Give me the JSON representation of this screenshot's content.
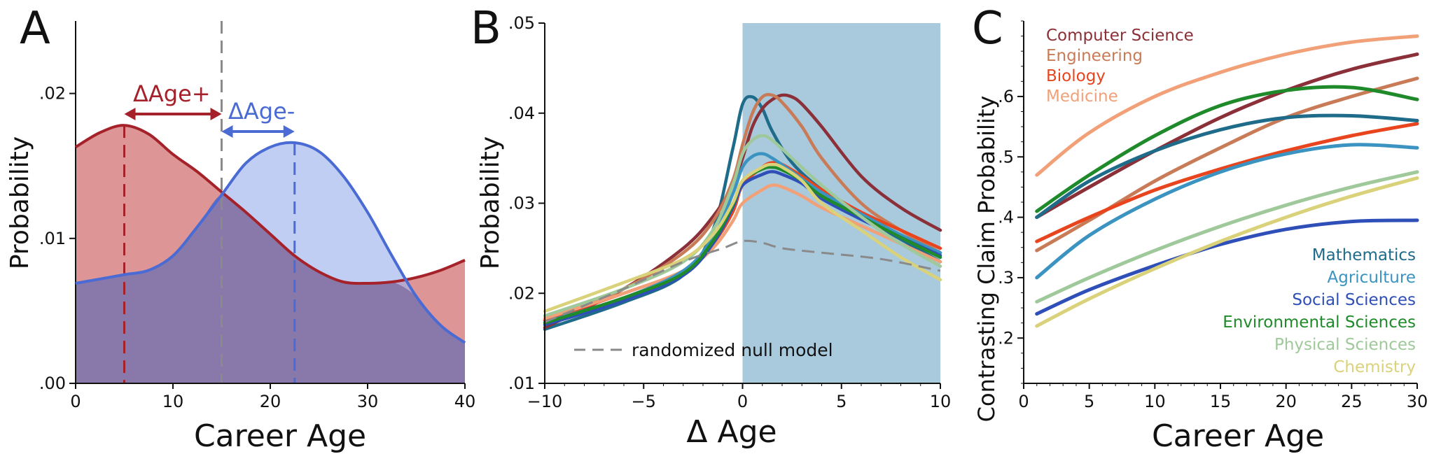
{
  "chart_data": [
    {
      "panel": "A",
      "type": "area",
      "xlabel": "Career Age",
      "ylabel": "Probability",
      "xlim": [
        0,
        40
      ],
      "ylim": [
        0,
        0.025
      ],
      "xticks": [
        0,
        10,
        20,
        30,
        40
      ],
      "xtick_labels": [
        "0",
        "10",
        "20",
        "30",
        "40"
      ],
      "yticks": [
        0,
        0.01,
        0.02
      ],
      "ytick_labels": [
        ".00",
        ".01",
        ".02"
      ],
      "reference_line_x": 15,
      "series": [
        {
          "name": "ΔAge+",
          "color": "#a5222b",
          "fill": "#d98a8a",
          "peak_x": 5,
          "x": [
            0,
            2.5,
            5,
            7.5,
            10,
            12.5,
            15,
            17.5,
            20,
            22.5,
            25,
            27.5,
            30,
            32.5,
            35,
            37.5,
            40
          ],
          "y": [
            0.0163,
            0.0173,
            0.0178,
            0.0172,
            0.0158,
            0.0146,
            0.0132,
            0.0118,
            0.0103,
            0.0088,
            0.0077,
            0.007,
            0.0069,
            0.007,
            0.0073,
            0.0078,
            0.0085
          ]
        },
        {
          "name": "ΔAge-",
          "color": "#4a6bd4",
          "fill": "#9fb4ee",
          "peak_x": 22.5,
          "x": [
            0,
            2.5,
            5,
            7.5,
            10,
            12.5,
            15,
            17.5,
            20,
            22.5,
            25,
            27.5,
            30,
            32.5,
            35,
            37.5,
            40
          ],
          "y": [
            0.0069,
            0.0072,
            0.0075,
            0.0078,
            0.0088,
            0.0108,
            0.013,
            0.0152,
            0.0163,
            0.0166,
            0.016,
            0.0143,
            0.0118,
            0.0088,
            0.006,
            0.004,
            0.0028
          ]
        }
      ]
    },
    {
      "panel": "B",
      "type": "line",
      "xlabel": "Δ Age",
      "ylabel": "Probability",
      "xlim": [
        -10,
        10
      ],
      "ylim": [
        0.01,
        0.05
      ],
      "xticks": [
        -10,
        -5,
        0,
        5,
        10
      ],
      "xtick_labels": [
        "−10",
        "−5",
        "0",
        "5",
        "10"
      ],
      "yticks": [
        0.01,
        0.02,
        0.03,
        0.04,
        0.05
      ],
      "ytick_labels": [
        ".01",
        ".02",
        ".03",
        ".04",
        ".05"
      ],
      "shaded_region_x": [
        0,
        10
      ],
      "shaded_color": "#a9c9dd",
      "null_model": {
        "label": "randomized null model",
        "color": "#8a8a8a",
        "x": [
          -10,
          -6,
          -3,
          -1,
          0,
          1,
          2,
          4,
          7,
          10
        ],
        "y": [
          0.0168,
          0.0205,
          0.0235,
          0.025,
          0.0258,
          0.0256,
          0.025,
          0.0245,
          0.0238,
          0.0225
        ]
      },
      "series": [
        {
          "name": "Mathematics",
          "color": "#1f6b8a",
          "x": [
            -10,
            -6,
            -3,
            -1.5,
            -0.5,
            0,
            0.5,
            1,
            1.5,
            2.5,
            4,
            6,
            8,
            10
          ],
          "y": [
            0.016,
            0.019,
            0.022,
            0.027,
            0.036,
            0.041,
            0.0418,
            0.0405,
            0.038,
            0.0345,
            0.0315,
            0.0285,
            0.026,
            0.0235
          ]
        },
        {
          "name": "Computer Science",
          "color": "#8b3038",
          "x": [
            -10,
            -6,
            -3,
            -1.5,
            -0.5,
            0,
            0.5,
            1,
            1.5,
            2,
            2.5,
            3,
            4,
            6,
            8,
            10
          ],
          "y": [
            0.0162,
            0.0205,
            0.025,
            0.0285,
            0.032,
            0.035,
            0.0385,
            0.0405,
            0.0415,
            0.042,
            0.0418,
            0.041,
            0.0385,
            0.033,
            0.0295,
            0.027
          ]
        },
        {
          "name": "Engineering",
          "color": "#c87b56",
          "x": [
            -10,
            -6,
            -3,
            -1.5,
            -0.5,
            0,
            0.5,
            1,
            1.5,
            2,
            3,
            4,
            6,
            8,
            10
          ],
          "y": [
            0.017,
            0.0205,
            0.0245,
            0.028,
            0.0325,
            0.0365,
            0.04,
            0.0418,
            0.042,
            0.0412,
            0.0385,
            0.035,
            0.03,
            0.027,
            0.0245
          ]
        },
        {
          "name": "Biology",
          "color": "#e8451f",
          "x": [
            -10,
            -6,
            -3,
            -1.5,
            -0.5,
            0,
            1,
            1.5,
            2,
            3,
            4,
            6,
            8,
            10
          ],
          "y": [
            0.017,
            0.02,
            0.0225,
            0.0255,
            0.029,
            0.032,
            0.034,
            0.0345,
            0.0343,
            0.033,
            0.0315,
            0.029,
            0.027,
            0.025
          ]
        },
        {
          "name": "Medicine",
          "color": "#f2a078",
          "x": [
            -10,
            -6,
            -3,
            -1.5,
            -0.5,
            0,
            1,
            1.5,
            2,
            3,
            4,
            6,
            8,
            10
          ],
          "y": [
            0.0172,
            0.02,
            0.0225,
            0.025,
            0.028,
            0.03,
            0.0315,
            0.032,
            0.0318,
            0.0308,
            0.0295,
            0.0275,
            0.0255,
            0.0235
          ]
        },
        {
          "name": "Agriculture",
          "color": "#3a93c0",
          "x": [
            -10,
            -6,
            -3,
            -1.5,
            -0.5,
            0,
            0.5,
            1,
            1.5,
            2.5,
            4,
            6,
            8,
            10
          ],
          "y": [
            0.0168,
            0.0195,
            0.0225,
            0.0262,
            0.031,
            0.034,
            0.0352,
            0.0355,
            0.035,
            0.0335,
            0.0312,
            0.0288,
            0.0265,
            0.0245
          ]
        },
        {
          "name": "Social Sciences",
          "color": "#2f4fb8",
          "x": [
            -10,
            -6,
            -3,
            -1.5,
            -0.5,
            0,
            1,
            1.5,
            2,
            3,
            4,
            6,
            8,
            10
          ],
          "y": [
            0.0165,
            0.0192,
            0.022,
            0.0255,
            0.0295,
            0.032,
            0.0332,
            0.0335,
            0.0332,
            0.0322,
            0.0305,
            0.0282,
            0.0262,
            0.0242
          ]
        },
        {
          "name": "Environmental Sciences",
          "color": "#1f8a2a",
          "x": [
            -10,
            -6,
            -3,
            -1.5,
            -0.5,
            0,
            1,
            1.5,
            2,
            3,
            4,
            6,
            8,
            10
          ],
          "y": [
            0.0167,
            0.0195,
            0.0222,
            0.0258,
            0.0298,
            0.0325,
            0.0338,
            0.034,
            0.0337,
            0.0325,
            0.0308,
            0.0285,
            0.0262,
            0.024
          ]
        },
        {
          "name": "Physical Sciences",
          "color": "#9fc99a",
          "x": [
            -10,
            -6,
            -3,
            -1.5,
            -0.5,
            0,
            0.5,
            1,
            1.5,
            2.5,
            4,
            6,
            8,
            10
          ],
          "y": [
            0.0175,
            0.0205,
            0.0235,
            0.027,
            0.032,
            0.0355,
            0.037,
            0.0375,
            0.037,
            0.035,
            0.032,
            0.0285,
            0.0255,
            0.023
          ]
        },
        {
          "name": "Chemistry",
          "color": "#d9d27a",
          "x": [
            -10,
            -6,
            -3,
            -1.5,
            -0.5,
            0,
            1,
            1.5,
            2,
            3,
            4,
            6,
            8,
            10
          ],
          "y": [
            0.018,
            0.0212,
            0.0238,
            0.0265,
            0.03,
            0.0325,
            0.034,
            0.0343,
            0.034,
            0.0325,
            0.03,
            0.027,
            0.024,
            0.0215
          ]
        }
      ]
    },
    {
      "panel": "C",
      "type": "line",
      "xlabel": "Career Age",
      "ylabel": "Contrasting Claim Probability",
      "xlim": [
        0,
        30
      ],
      "ylim": [
        0.125,
        0.725
      ],
      "xticks": [
        0,
        5,
        10,
        15,
        20,
        25,
        30
      ],
      "xtick_labels": [
        "0",
        "5",
        "10",
        "15",
        "20",
        "25",
        "30"
      ],
      "yticks": [
        0.2,
        0.3,
        0.4,
        0.5,
        0.6
      ],
      "ytick_labels": [
        ".2",
        ".3",
        ".4",
        ".5",
        ".6"
      ],
      "legend_top": [
        "Computer Science",
        "Engineering",
        "Biology",
        "Medicine"
      ],
      "legend_bottom": [
        "Mathematics",
        "Agriculture",
        "Social Sciences",
        "Environmental Sciences",
        "Physical Sciences",
        "Chemistry"
      ],
      "series": [
        {
          "name": "Computer Science",
          "color": "#8b3038",
          "x": [
            1,
            5,
            10,
            15,
            20,
            25,
            30
          ],
          "y": [
            0.4,
            0.45,
            0.51,
            0.565,
            0.61,
            0.645,
            0.67
          ]
        },
        {
          "name": "Engineering",
          "color": "#c87b56",
          "x": [
            1,
            5,
            10,
            15,
            20,
            25,
            30
          ],
          "y": [
            0.345,
            0.395,
            0.46,
            0.515,
            0.565,
            0.6,
            0.63
          ]
        },
        {
          "name": "Biology",
          "color": "#e8451f",
          "x": [
            1,
            5,
            10,
            15,
            20,
            25,
            30
          ],
          "y": [
            0.36,
            0.4,
            0.445,
            0.48,
            0.51,
            0.535,
            0.555
          ]
        },
        {
          "name": "Medicine",
          "color": "#f2a078",
          "x": [
            1,
            5,
            10,
            15,
            20,
            25,
            30
          ],
          "y": [
            0.47,
            0.54,
            0.6,
            0.64,
            0.67,
            0.69,
            0.7
          ]
        },
        {
          "name": "Mathematics",
          "color": "#1f6b8a",
          "x": [
            1,
            5,
            10,
            15,
            20,
            25,
            30
          ],
          "y": [
            0.4,
            0.46,
            0.51,
            0.545,
            0.565,
            0.568,
            0.56
          ]
        },
        {
          "name": "Agriculture",
          "color": "#3a93c0",
          "x": [
            1,
            5,
            10,
            15,
            20,
            25,
            30
          ],
          "y": [
            0.3,
            0.37,
            0.43,
            0.475,
            0.505,
            0.52,
            0.515
          ]
        },
        {
          "name": "Social Sciences",
          "color": "#2f4fb8",
          "x": [
            1,
            5,
            10,
            15,
            20,
            25,
            30
          ],
          "y": [
            0.24,
            0.28,
            0.32,
            0.355,
            0.38,
            0.393,
            0.395
          ]
        },
        {
          "name": "Environmental Sciences",
          "color": "#1f8a2a",
          "x": [
            1,
            5,
            10,
            15,
            20,
            25,
            30
          ],
          "y": [
            0.41,
            0.47,
            0.535,
            0.585,
            0.61,
            0.615,
            0.595
          ]
        },
        {
          "name": "Physical Sciences",
          "color": "#9fc99a",
          "x": [
            1,
            5,
            10,
            15,
            20,
            25,
            30
          ],
          "y": [
            0.26,
            0.3,
            0.345,
            0.385,
            0.42,
            0.45,
            0.475
          ]
        },
        {
          "name": "Chemistry",
          "color": "#d9d27a",
          "x": [
            1,
            5,
            10,
            15,
            20,
            25,
            30
          ],
          "y": [
            0.22,
            0.265,
            0.315,
            0.36,
            0.4,
            0.435,
            0.465
          ]
        }
      ]
    }
  ],
  "panel_labels": {
    "a": "A",
    "b": "B",
    "c": "C"
  }
}
